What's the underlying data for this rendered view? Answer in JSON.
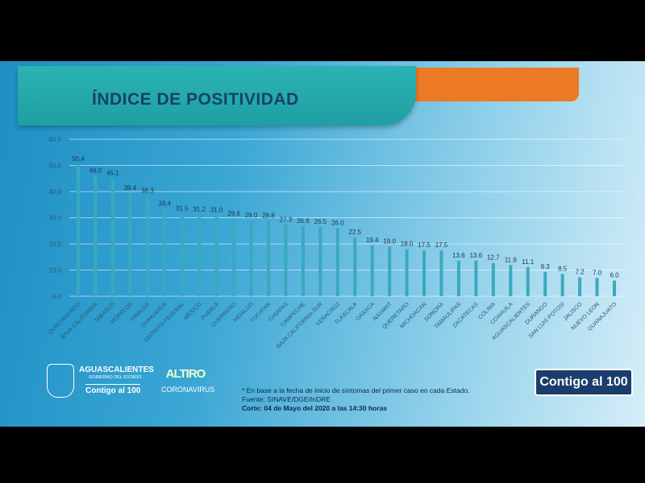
{
  "header": {
    "title": "ÍNDICE DE POSITIVIDAD"
  },
  "colors": {
    "bar": "#3aa9c0",
    "banner": "#22a6a8",
    "accent": "#ec7a24",
    "title": "#17406b"
  },
  "chart_data": {
    "type": "bar",
    "title": "ÍNDICE DE POSITIVIDAD",
    "ylim": [
      0,
      60
    ],
    "yticks": [
      "0.0",
      "10.0",
      "20.0",
      "30.0",
      "40.0",
      "50.0",
      "60.0"
    ],
    "grid": true,
    "categories": [
      "QUINTANA ROO",
      "BAJA CALIFORNIA",
      "TABASCO",
      "MORELOS",
      "SINALOA",
      "CHIHUAHUA",
      "DISTRITO FEDERAL",
      "MEXICO",
      "PUEBLA",
      "GUERRERO",
      "HIDALGO",
      "YUCATAN",
      "CHIAPAS",
      "CAMPECHE",
      "BAJA CALIFORNIA SUR",
      "VERACRUZ",
      "TLAXCALA",
      "OAXACA",
      "NAYARIT",
      "QUERETARO",
      "MICHOACAN",
      "SONORA",
      "TAMAULIPAS",
      "ZACATECAS",
      "COLIMA",
      "COAHUILA",
      "AGUASCALIENTES",
      "DURANGO",
      "SAN LUIS POTOSI",
      "JALISCO",
      "NUEVO LEON",
      "GUANAJUATO"
    ],
    "values": [
      50.4,
      46.0,
      45.1,
      39.4,
      38.3,
      33.4,
      31.5,
      31.2,
      31.0,
      29.6,
      29.0,
      28.8,
      27.3,
      26.8,
      26.5,
      26.0,
      22.5,
      19.4,
      19.0,
      18.0,
      17.5,
      17.5,
      13.6,
      13.6,
      12.7,
      11.9,
      11.1,
      9.3,
      8.5,
      7.2,
      7.0,
      6.0
    ],
    "labels": [
      "50.4",
      "46.0",
      "45.1",
      "39.4",
      "38.3",
      "33.4",
      "31.5",
      "31.2",
      "31.0",
      "29.6",
      "29.0",
      "28.8",
      "27.3",
      "26.8",
      "26.5",
      "26.0",
      "22.5",
      "19.4",
      "19.0",
      "18.0",
      "17.5",
      "17.5",
      "13.6",
      "13.6",
      "12.7",
      "11.9",
      "11.1",
      "9.3",
      "8.5",
      "7.2",
      "7.0",
      "6.0"
    ]
  },
  "footer": {
    "note": "* En base a la fecha de inicio de síntomas del primer caso en cada Estado.",
    "source": "Fuente: SINAVE/DGE/InDRE",
    "cutoff": "Corte: 04 de Mayo del 2020 a las 14:30 horas",
    "gov_name": "AGUASCALIENTES",
    "gov_sub": "GOBIERNO DEL ESTADO",
    "gov_slogan": "Contigo al 100",
    "campaign_top": "ALTIRO",
    "campaign_bottom": "CORONAVIRUS",
    "logo_right": "Contigo al 100"
  }
}
